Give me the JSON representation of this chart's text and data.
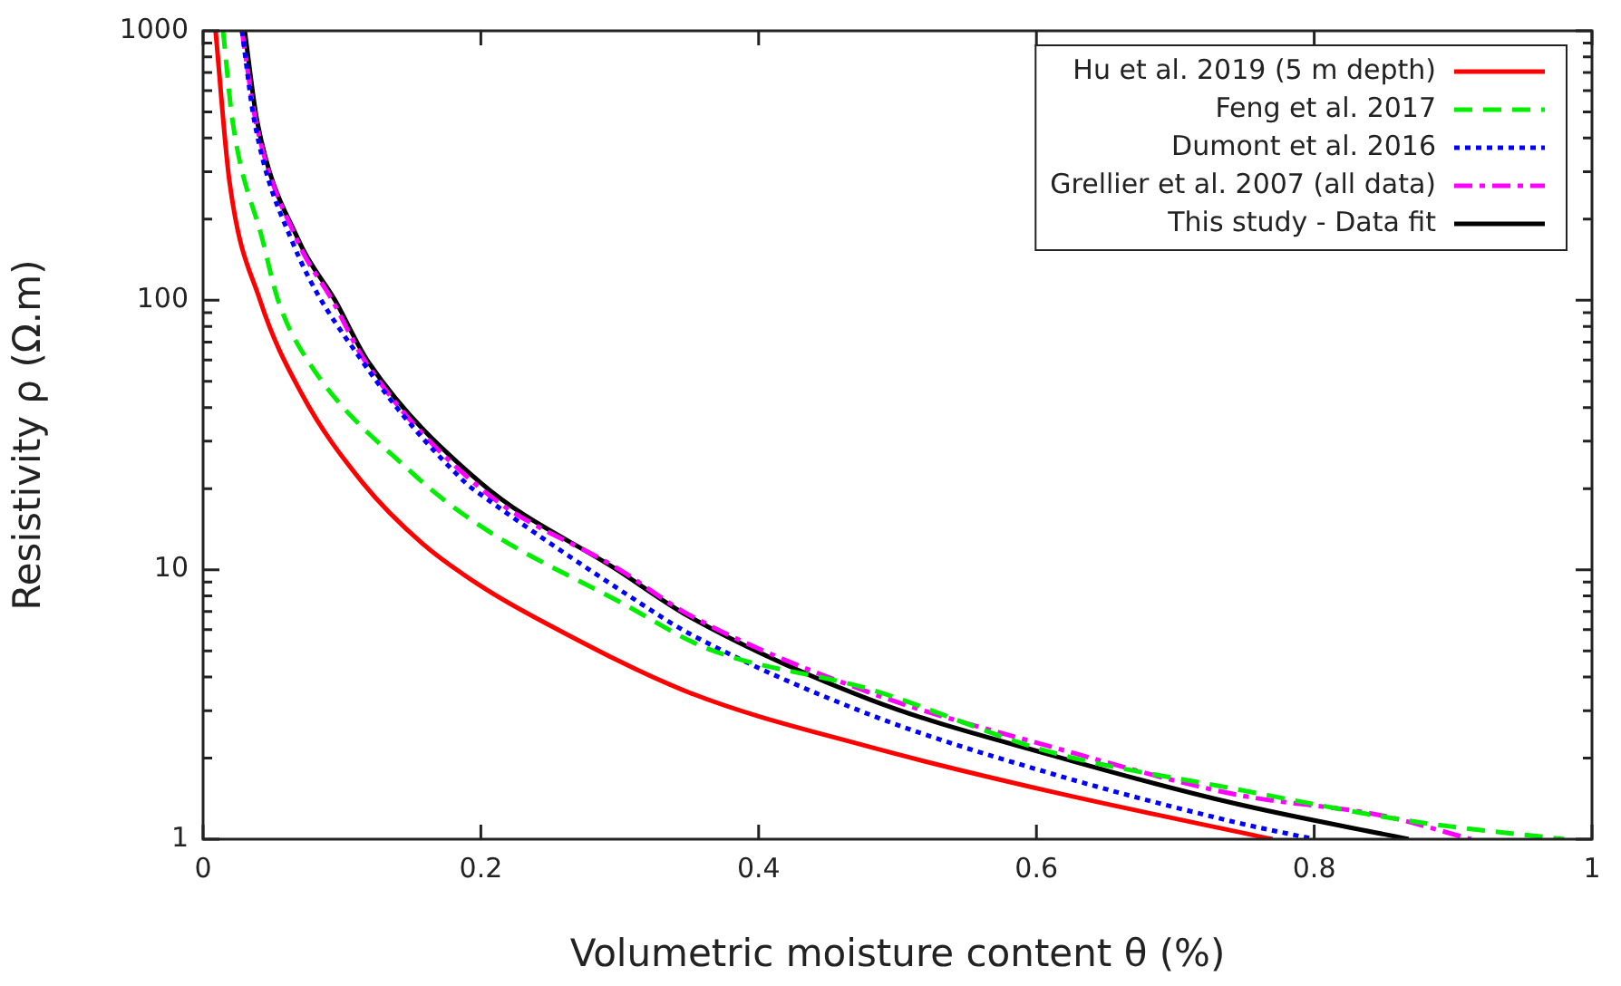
{
  "chart_data": {
    "type": "line",
    "xlabel": "Volumetric moisture content θ (%)",
    "ylabel": "Resistivity ρ (Ω.m)",
    "log": "y",
    "grid": false,
    "legend": "top right",
    "marker": "none",
    "xlim": [
      0,
      1
    ],
    "xticks": [
      0,
      0.2,
      0.4,
      0.6,
      0.8,
      1
    ],
    "ylim": [
      1,
      1000
    ],
    "yticks": [
      1,
      {
        "value": 2,
        "label": null
      },
      {
        "value": 3,
        "label": null
      },
      {
        "value": 4,
        "label": null
      },
      {
        "value": 5,
        "label": null
      },
      {
        "value": 6,
        "label": null
      },
      {
        "value": 7,
        "label": null
      },
      {
        "value": 8,
        "label": null
      },
      {
        "value": 9,
        "label": null
      },
      10,
      {
        "value": 20,
        "label": null
      },
      {
        "value": 30,
        "label": null
      },
      {
        "value": 40,
        "label": null
      },
      {
        "value": 50,
        "label": null
      },
      {
        "value": 60,
        "label": null
      },
      {
        "value": 70,
        "label": null
      },
      {
        "value": 80,
        "label": null
      },
      {
        "value": 90,
        "label": null
      },
      100,
      {
        "value": 200,
        "label": null
      },
      {
        "value": 300,
        "label": null
      },
      {
        "value": 400,
        "label": null
      },
      {
        "value": 500,
        "label": null
      },
      {
        "value": 600,
        "label": null
      },
      {
        "value": 700,
        "label": null
      },
      {
        "value": 800,
        "label": null
      },
      {
        "value": 900,
        "label": null
      },
      1000
    ],
    "series": [
      {
        "name": "Hu et al. 2019 (5 m depth)",
        "color": "#ff0000",
        "line_style": "solid",
        "x": [
          0.009,
          0.019,
          0.041,
          0.071,
          0.115,
          0.158,
          0.2,
          0.245,
          0.35,
          0.48,
          0.611,
          0.77
        ],
        "values": [
          1000,
          276,
          100,
          45,
          21,
          12.5,
          8.7,
          6.4,
          3.5,
          2.2,
          1.5,
          1
        ]
      },
      {
        "name": "Feng et al. 2017",
        "color": "#00ee00",
        "line_style": "dashed",
        "x": [
          0.0144,
          0.0213,
          0.043,
          0.054,
          0.076,
          0.15,
          0.2,
          0.302,
          0.363,
          0.48,
          0.611,
          0.742,
          0.873,
          0.98
        ],
        "values": [
          1000,
          460,
          166,
          100,
          59,
          23,
          14.5,
          7.5,
          5.1,
          3.6,
          2.1,
          1.54,
          1.16,
          1
        ]
      },
      {
        "name": "Dumont et al. 2016",
        "color": "#0000ff",
        "line_style": "dotted",
        "x": [
          0.028,
          0.037,
          0.064,
          0.115,
          0.189,
          0.2,
          0.315,
          0.35,
          0.48,
          0.611,
          0.742,
          0.8
        ],
        "values": [
          1000,
          460,
          166,
          59,
          21,
          19,
          7.5,
          5.8,
          2.9,
          1.75,
          1.16,
          1
        ]
      },
      {
        "name": "Grellier et al. 2007 (all data)",
        "color": "#ff00ff",
        "line_style": "dashdot",
        "x": [
          0.028,
          0.038,
          0.068,
          0.093,
          0.117,
          0.2,
          0.3,
          0.35,
          0.48,
          0.611,
          0.742,
          0.85,
          0.913
        ],
        "values": [
          1000,
          460,
          166,
          100,
          59,
          20,
          10,
          6.8,
          3.5,
          2.2,
          1.47,
          1.22,
          1
        ]
      },
      {
        "name": "This study - Data fit",
        "color": "#000000",
        "line_style": "solid",
        "x": [
          0.03,
          0.039,
          0.069,
          0.095,
          0.119,
          0.2,
          0.298,
          0.35,
          0.48,
          0.611,
          0.742,
          0.868
        ],
        "values": [
          1000,
          460,
          166,
          100,
          59,
          21,
          10,
          6.7,
          3.3,
          2.05,
          1.36,
          1
        ]
      }
    ]
  }
}
